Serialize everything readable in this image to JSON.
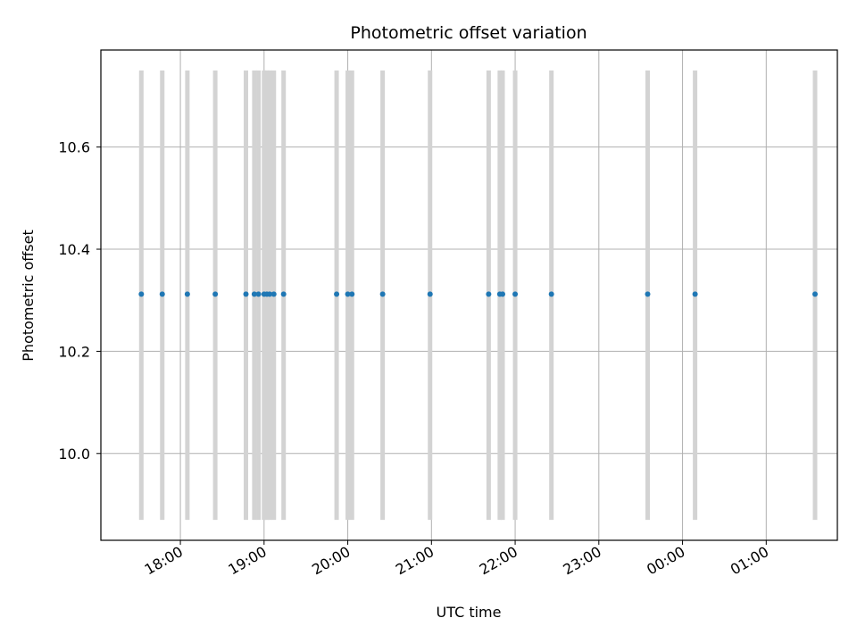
{
  "chart_data": {
    "type": "scatter",
    "title": "Photometric offset variation",
    "xlabel": "UTC time",
    "ylabel": "Photometric offset",
    "x_axis_kind": "time",
    "x_tick_labels": [
      "18:00",
      "19:00",
      "20:00",
      "21:00",
      "22:00",
      "23:00",
      "00:00",
      "01:00"
    ],
    "x_ticks": [
      "18:00",
      "19:00",
      "20:00",
      "21:00",
      "22:00",
      "23:00",
      "00:00",
      "01:00"
    ],
    "x_range": [
      "17:03",
      "01:51"
    ],
    "y_tick_labels": [
      "10.0",
      "10.2",
      "10.4",
      "10.6"
    ],
    "y_ticks": [
      10.0,
      10.2,
      10.4,
      10.6
    ],
    "ylim": [
      9.83,
      10.79
    ],
    "grid": true,
    "series": [
      {
        "color": "#1f77b4",
        "x": [
          "17:32",
          "17:47",
          "18:05",
          "18:25",
          "18:47",
          "18:53",
          "18:56",
          "19:00",
          "19:02",
          "19:04",
          "19:07",
          "19:14",
          "19:52",
          "20:00",
          "20:03",
          "20:25",
          "20:59",
          "21:41",
          "21:49",
          "21:51",
          "22:00",
          "22:26",
          "23:35",
          "00:09",
          "01:35"
        ],
        "y": [
          10.312,
          10.312,
          10.312,
          10.312,
          10.312,
          10.312,
          10.312,
          10.312,
          10.312,
          10.312,
          10.312,
          10.312,
          10.312,
          10.312,
          10.312,
          10.312,
          10.312,
          10.312,
          10.312,
          10.312,
          10.312,
          10.312,
          10.312,
          10.312,
          10.312
        ]
      }
    ],
    "vertical_lines": {
      "color": "#d3d3d3",
      "ymin": 9.87,
      "ymax": 10.75,
      "x": [
        "17:32",
        "17:47",
        "18:05",
        "18:25",
        "18:47",
        "18:53",
        "18:56",
        "19:00",
        "19:02",
        "19:04",
        "19:07",
        "19:14",
        "19:52",
        "20:00",
        "20:03",
        "20:25",
        "20:59",
        "21:41",
        "21:49",
        "21:51",
        "22:00",
        "22:26",
        "23:35",
        "00:09",
        "01:35"
      ]
    }
  }
}
